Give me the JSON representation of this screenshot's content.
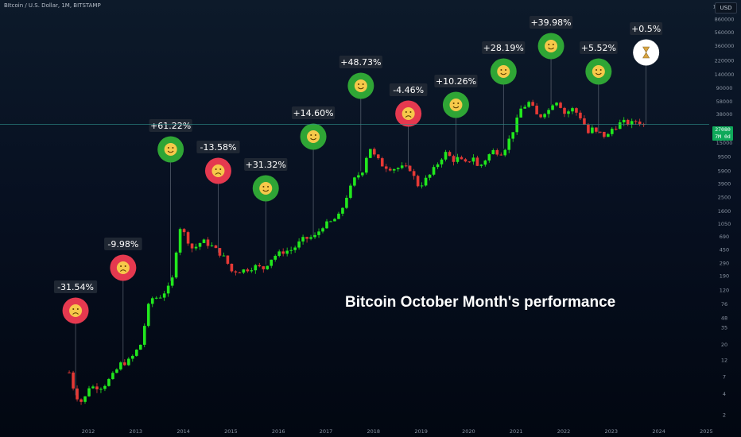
{
  "header": {
    "symbol": "BItcoin / U.S. Dollar, 1M, BITSTAMP",
    "currency": "USD"
  },
  "price_tag": {
    "price": "27080",
    "timer": "7M 0d"
  },
  "title": "Bitcoin October Month's performance",
  "colors": {
    "up": "#21e81d",
    "down": "#e53935",
    "bull_badge": "#2fa535",
    "bear_badge": "#e5394f",
    "pending_badge": "#ffffff",
    "label_bg": "#1f2733",
    "price_line": "#2e8f8a"
  },
  "chart_data": {
    "type": "candlestick",
    "title": "Bitcoin October Month's performance",
    "scale": "log",
    "ylim": [
      2,
      1300000
    ],
    "xlim": [
      2011.5,
      2025.1
    ],
    "y_ticks": [
      2,
      4,
      7,
      12,
      20,
      35,
      48,
      76,
      120,
      190,
      290,
      450,
      690,
      1050,
      1600,
      2500,
      3900,
      5900,
      9500,
      15000,
      23000,
      38000,
      58000,
      90000,
      140000,
      220000,
      360000,
      560000,
      860000,
      1300000
    ],
    "x_ticks": [
      "2012",
      "2013",
      "2014",
      "2015",
      "2016",
      "2017",
      "2018",
      "2019",
      "2020",
      "2021",
      "2022",
      "2023",
      "2024",
      "2025"
    ],
    "last_price": 27080,
    "october_performance": [
      {
        "year": 2011,
        "change": "-31.54%",
        "mood": "bear"
      },
      {
        "year": 2012,
        "change": "-9.98%",
        "mood": "bear"
      },
      {
        "year": 2013,
        "change": "+61.22%",
        "mood": "bull"
      },
      {
        "year": 2014,
        "change": "-13.58%",
        "mood": "bear"
      },
      {
        "year": 2015,
        "change": "+31.32%",
        "mood": "bull"
      },
      {
        "year": 2016,
        "change": "+14.60%",
        "mood": "bull"
      },
      {
        "year": 2017,
        "change": "+48.73%",
        "mood": "bull"
      },
      {
        "year": 2018,
        "change": "-4.46%",
        "mood": "bear"
      },
      {
        "year": 2019,
        "change": "+10.26%",
        "mood": "bull"
      },
      {
        "year": 2020,
        "change": "+28.19%",
        "mood": "bull"
      },
      {
        "year": 2021,
        "change": "+39.98%",
        "mood": "bull"
      },
      {
        "year": 2022,
        "change": "+5.52%",
        "mood": "bull"
      },
      {
        "year": 2023,
        "change": "+0.5%",
        "mood": "pending"
      }
    ],
    "monthly_closes": [
      [
        2011.6,
        8
      ],
      [
        2011.7,
        4.5
      ],
      [
        2011.8,
        3.2
      ],
      [
        2011.9,
        3
      ],
      [
        2012,
        5
      ],
      [
        2012.3,
        5
      ],
      [
        2012.5,
        7
      ],
      [
        2012.7,
        11
      ],
      [
        2012.8,
        11
      ],
      [
        2012.9,
        12.5
      ],
      [
        2013.1,
        20
      ],
      [
        2013.3,
        90
      ],
      [
        2013.5,
        95
      ],
      [
        2013.7,
        130
      ],
      [
        2013.8,
        198
      ],
      [
        2013.9,
        1000
      ],
      [
        2014.0,
        800
      ],
      [
        2014.2,
        450
      ],
      [
        2014.4,
        600
      ],
      [
        2014.6,
        500
      ],
      [
        2014.8,
        380
      ],
      [
        2014.9,
        320
      ],
      [
        2015,
        220
      ],
      [
        2015.3,
        230
      ],
      [
        2015.5,
        260
      ],
      [
        2015.7,
        240
      ],
      [
        2015.8,
        310
      ],
      [
        2015.9,
        360
      ],
      [
        2016.1,
        420
      ],
      [
        2016.3,
        450
      ],
      [
        2016.5,
        620
      ],
      [
        2016.8,
        700
      ],
      [
        2016.9,
        960
      ],
      [
        2017.1,
        1100
      ],
      [
        2017.3,
        1400
      ],
      [
        2017.4,
        2300
      ],
      [
        2017.6,
        4500
      ],
      [
        2017.8,
        6400
      ],
      [
        2017.9,
        14000
      ],
      [
        2018,
        10000
      ],
      [
        2018.2,
        7000
      ],
      [
        2018.4,
        6400
      ],
      [
        2018.6,
        6600
      ],
      [
        2018.8,
        6300
      ],
      [
        2018.9,
        3700
      ],
      [
        2019,
        3800
      ],
      [
        2019.2,
        5300
      ],
      [
        2019.4,
        8500
      ],
      [
        2019.5,
        10800
      ],
      [
        2019.7,
        8300
      ],
      [
        2019.8,
        9200
      ],
      [
        2019.9,
        7200
      ],
      [
        2020.1,
        9400
      ],
      [
        2020.2,
        6400
      ],
      [
        2020.4,
        9500
      ],
      [
        2020.5,
        11400
      ],
      [
        2020.7,
        10800
      ],
      [
        2020.8,
        13800
      ],
      [
        2020.9,
        19700
      ],
      [
        2021,
        29000
      ],
      [
        2021.1,
        45000
      ],
      [
        2021.3,
        57700
      ],
      [
        2021.4,
        37300
      ],
      [
        2021.5,
        35000
      ],
      [
        2021.6,
        41500
      ],
      [
        2021.7,
        43800
      ],
      [
        2021.8,
        61300
      ],
      [
        2021.9,
        57000
      ],
      [
        2022,
        38500
      ],
      [
        2022.2,
        45500
      ],
      [
        2022.3,
        37700
      ],
      [
        2022.4,
        31800
      ],
      [
        2022.5,
        19900
      ],
      [
        2022.6,
        23300
      ],
      [
        2022.7,
        20000
      ],
      [
        2022.8,
        20500
      ],
      [
        2022.9,
        17200
      ],
      [
        2023,
        23100
      ],
      [
        2023.2,
        28500
      ],
      [
        2023.3,
        29300
      ],
      [
        2023.4,
        27200
      ],
      [
        2023.5,
        30500
      ],
      [
        2023.6,
        29200
      ],
      [
        2023.7,
        26000
      ],
      [
        2023.75,
        27080
      ]
    ]
  }
}
